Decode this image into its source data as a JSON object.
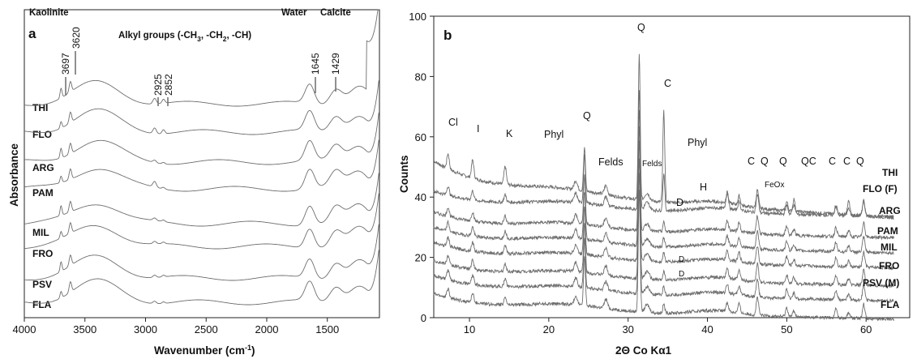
{
  "chart_data": [
    {
      "type": "line",
      "panel": "a",
      "xlabel": "Wavenumber (cm",
      "xlabel_sup": "-1",
      "xlabel_end": ")",
      "ylabel": "Absorbance",
      "xlim": [
        4000,
        1070
      ],
      "x_reversed": true,
      "x_ticks": [
        4000,
        3500,
        3000,
        2500,
        2000,
        1500
      ],
      "group_labels": {
        "kaolinite": "Kaolinite",
        "alkyl_prefix": "Alkyl groups (-CH",
        "alkyl_sub1": "3",
        "alkyl_mid1": ", -CH",
        "alkyl_sub2": "2",
        "alkyl_end": ", -CH)",
        "water": "Water",
        "calcite": "Calcite"
      },
      "peak_labels": [
        3697,
        3620,
        2925,
        2852,
        1645,
        1429
      ],
      "series": [
        {
          "name": "THI"
        },
        {
          "name": "FLO"
        },
        {
          "name": "ARG"
        },
        {
          "name": "PAM"
        },
        {
          "name": "MIL"
        },
        {
          "name": "FRO"
        },
        {
          "name": "PSV"
        },
        {
          "name": "FLA"
        }
      ]
    },
    {
      "type": "line",
      "panel": "b",
      "xlabel": "2Θ Co Kα1",
      "ylabel": "Counts",
      "xlim": [
        5.5,
        65.5
      ],
      "ylim": [
        0,
        100
      ],
      "x_ticks": [
        10,
        20,
        30,
        40,
        50,
        60
      ],
      "y_ticks": [
        0,
        20,
        40,
        60,
        80,
        100
      ],
      "series": [
        {
          "name": "THI"
        },
        {
          "name": "FLO (F)"
        },
        {
          "name": "ARG"
        },
        {
          "name": "PAM"
        },
        {
          "name": "MIL"
        },
        {
          "name": "FRO"
        },
        {
          "name": "PSV (M)"
        },
        {
          "name": "FLA"
        }
      ],
      "mineral_labels": [
        "Cl",
        "I",
        "K",
        "Phyl",
        "Q",
        "Felds",
        "Felds",
        "Q",
        "C",
        "Phyl",
        "H",
        "D",
        "C",
        "Q",
        "Q",
        "FeOx",
        "QC",
        "C",
        "C",
        "Q",
        "D",
        "D"
      ],
      "peaks": [
        {
          "x": 7.3,
          "label": "Cl"
        },
        {
          "x": 10.4,
          "label": "I"
        },
        {
          "x": 14.5,
          "label": "K"
        },
        {
          "x": 24.5,
          "label": "Q"
        },
        {
          "x": 31.4,
          "label": "Q"
        },
        {
          "x": 34.5,
          "label": "C"
        },
        {
          "x": 42.5,
          "label": "C"
        },
        {
          "x": 44.0,
          "label": "Q"
        },
        {
          "x": 46.3,
          "label": "Q"
        },
        {
          "x": 50.5,
          "label": "QC"
        },
        {
          "x": 56.2,
          "label": "C"
        },
        {
          "x": 57.8,
          "label": "C"
        },
        {
          "x": 59.7,
          "label": "Q"
        }
      ]
    }
  ]
}
